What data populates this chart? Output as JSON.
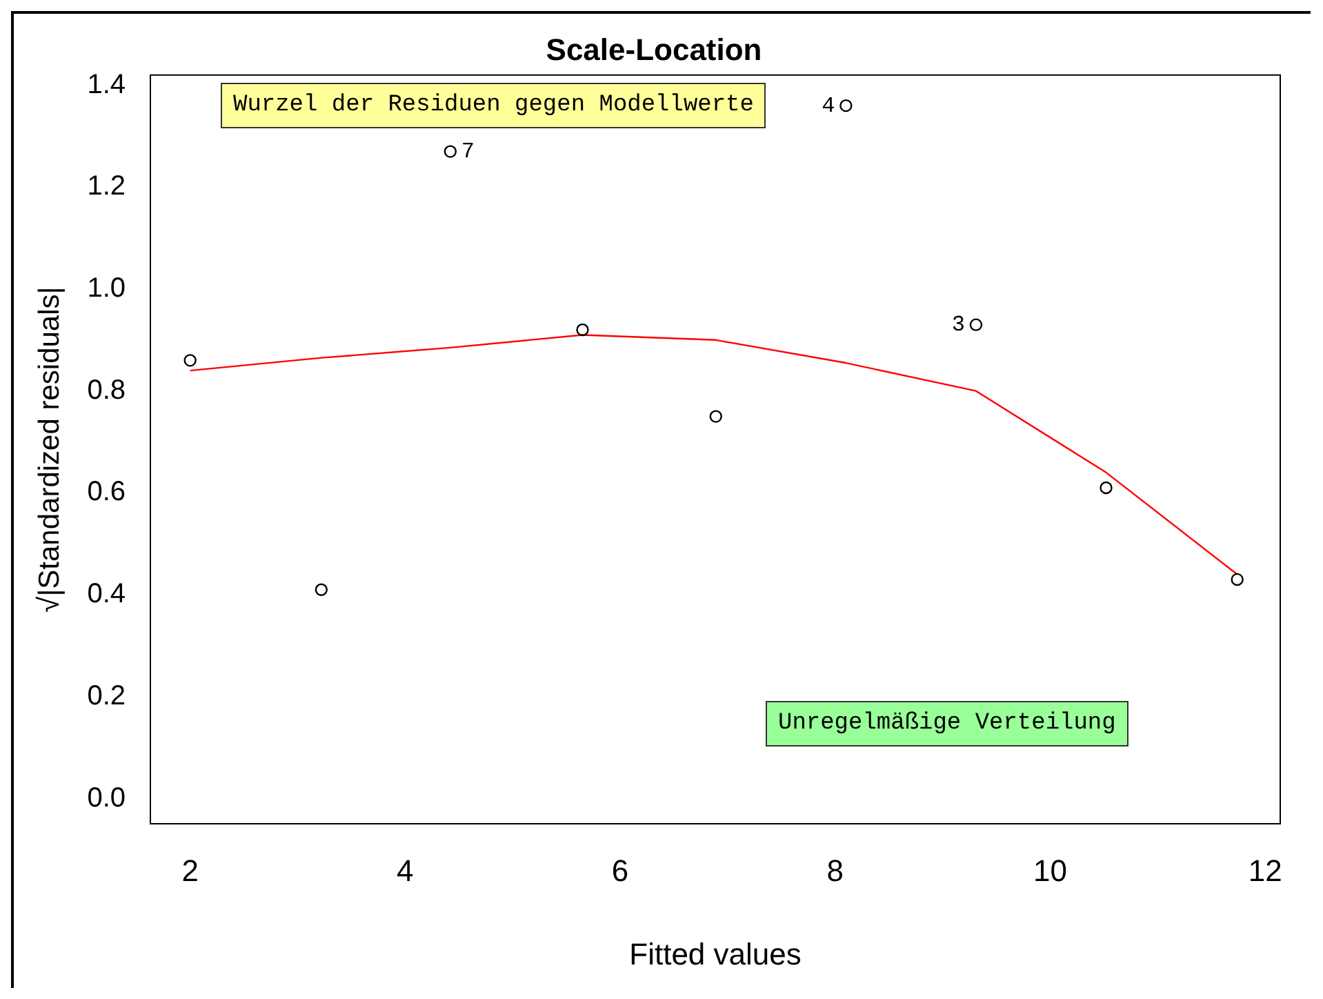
{
  "chart_data": {
    "type": "scatter",
    "title": "Scale-Location",
    "xlabel": "Fitted values",
    "ylabel": "√|Standardized residuals|",
    "series": [
      {
        "color": "#000000",
        "marker": "circle",
        "x": [
          2.0,
          3.22,
          4.42,
          5.65,
          6.89,
          8.1,
          9.31,
          10.52,
          11.74
        ],
        "values": [
          0.86,
          0.41,
          1.27,
          0.92,
          0.75,
          1.36,
          0.93,
          0.61,
          0.43
        ]
      },
      {
        "type": "line",
        "color": "#ff0000",
        "marker": "none",
        "x": [
          2.0,
          3.22,
          4.42,
          5.65,
          6.89,
          8.1,
          9.31,
          10.52,
          11.74
        ],
        "values": [
          0.84,
          0.865,
          0.885,
          0.91,
          0.9,
          0.855,
          0.8,
          0.64,
          0.44
        ]
      }
    ],
    "xlim": [
      1.63,
      12.14
    ],
    "xticks": [
      2,
      4,
      6,
      8,
      10,
      12
    ],
    "ylim": [
      -0.05,
      1.42
    ],
    "yticks": [
      {
        "value": 0,
        "label": "0.0"
      },
      0.2,
      0.4,
      0.6,
      0.8,
      {
        "value": 1,
        "label": "1.0"
      },
      1.2,
      1.4
    ],
    "grid": false,
    "legend": false,
    "annotations": [
      {
        "text": "7",
        "x": 4.42,
        "y": 1.27
      },
      {
        "text": "4",
        "x": 8.1,
        "y": 1.36
      },
      {
        "text": "3",
        "x": 9.31,
        "y": 0.93
      },
      "Wurzel der Residuen gegen Modellwerte",
      "Unregelmäßige Verteilung"
    ]
  }
}
